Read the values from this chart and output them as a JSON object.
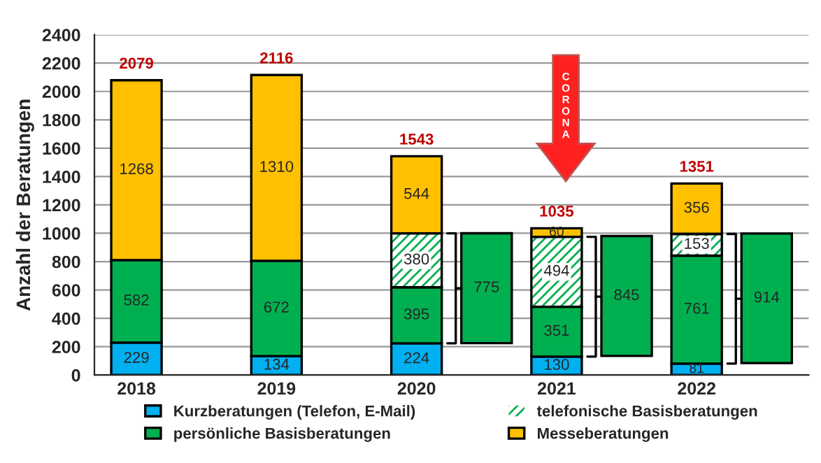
{
  "chart_data": {
    "type": "bar",
    "stacked": true,
    "ylabel": "Anzahl der Beratungen",
    "categories": [
      "2018",
      null,
      "2019",
      null,
      "2020",
      null,
      "2021",
      null,
      "2022",
      null
    ],
    "series": [
      {
        "name": "Kurzberatungen (Telefon, E-Mail)",
        "color": "#00b0f0",
        "values": [
          229,
          null,
          134,
          null,
          224,
          null,
          130,
          null,
          81,
          null
        ]
      },
      {
        "name": "persönliche Basisberatungen",
        "color": "#00b050",
        "values": [
          582,
          null,
          672,
          null,
          395,
          null,
          351,
          null,
          761,
          null
        ]
      },
      {
        "name": "telefonische Basisberatungen",
        "color": "#00b050",
        "values": [
          null,
          null,
          null,
          null,
          380,
          null,
          494,
          null,
          153,
          null
        ]
      },
      {
        "name": "Messeberatungen",
        "color": "#ffc000",
        "values": [
          1268,
          null,
          1310,
          null,
          544,
          null,
          60,
          null,
          356,
          null
        ]
      },
      {
        "color": "#00b050",
        "values": [
          null,
          null,
          null,
          null,
          null,
          775,
          null,
          845,
          null,
          914
        ],
        "base": [
          null,
          null,
          null,
          null,
          null,
          225,
          null,
          135,
          null,
          84
        ]
      }
    ],
    "totals": [
      "2079",
      null,
      "2116",
      null,
      "1543",
      null,
      "1035",
      null,
      "1351",
      null
    ],
    "data_labels": true,
    "annotations": [
      "CORONA"
    ],
    "ylim": [
      0,
      2400
    ],
    "yticks": [
      0,
      200,
      400,
      600,
      800,
      1000,
      1200,
      1400,
      1600,
      1800,
      2000,
      2200,
      2400
    ],
    "grid": "y",
    "legend": "bottom"
  }
}
